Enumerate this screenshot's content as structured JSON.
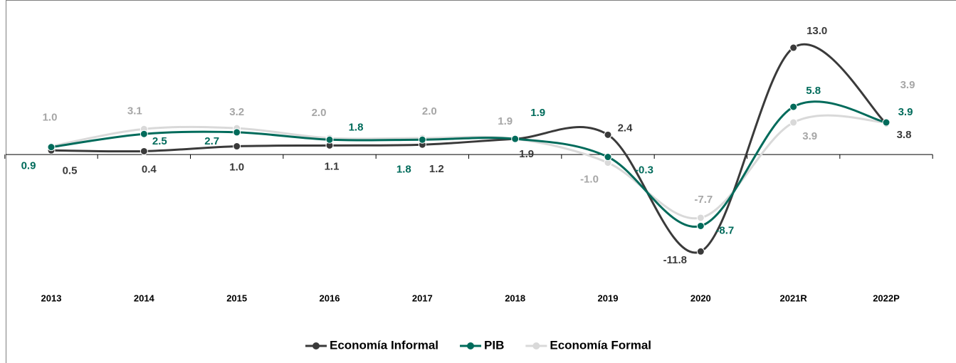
{
  "chart_data": {
    "type": "line",
    "categories": [
      "2013",
      "2014",
      "2015",
      "2016",
      "2017",
      "2018",
      "2019",
      "2020",
      "2021R",
      "2022P"
    ],
    "series": [
      {
        "name": "Economía Informal",
        "color": "#3a3a3a",
        "label_color": "#3a3a3a",
        "values": [
          0.5,
          0.4,
          1.0,
          1.1,
          1.2,
          1.9,
          2.4,
          -11.8,
          13.0,
          3.8
        ],
        "value_labels": [
          "0.5",
          "0.4",
          "1.0",
          "1.1",
          "1.2",
          "1.9",
          "2.4",
          "-11.8",
          "13.0",
          "3.8"
        ]
      },
      {
        "name": "PIB",
        "color": "#006b5b",
        "label_color": "#006b5b",
        "values": [
          0.9,
          2.5,
          2.7,
          1.8,
          1.8,
          1.9,
          -0.3,
          -8.7,
          5.8,
          3.9
        ],
        "value_labels": [
          "0.9",
          "2.5",
          "2.7",
          "1.8",
          "1.8",
          "1.9",
          "-0.3",
          "-8.7",
          "5.8",
          "3.9"
        ]
      },
      {
        "name": "Economía Formal",
        "color": "#d9d9d9",
        "label_color": "#a6a6a6",
        "values": [
          1.0,
          3.1,
          3.2,
          2.0,
          2.0,
          1.9,
          -1.0,
          -7.7,
          3.9,
          3.9
        ],
        "value_labels": [
          "1.0",
          "3.1",
          "3.2",
          "2.0",
          "2.0",
          "1.9",
          "-1.0",
          "-7.7",
          "3.9",
          "3.9"
        ]
      }
    ],
    "ylim": [
      -15,
      18
    ],
    "legend": "bottom"
  }
}
